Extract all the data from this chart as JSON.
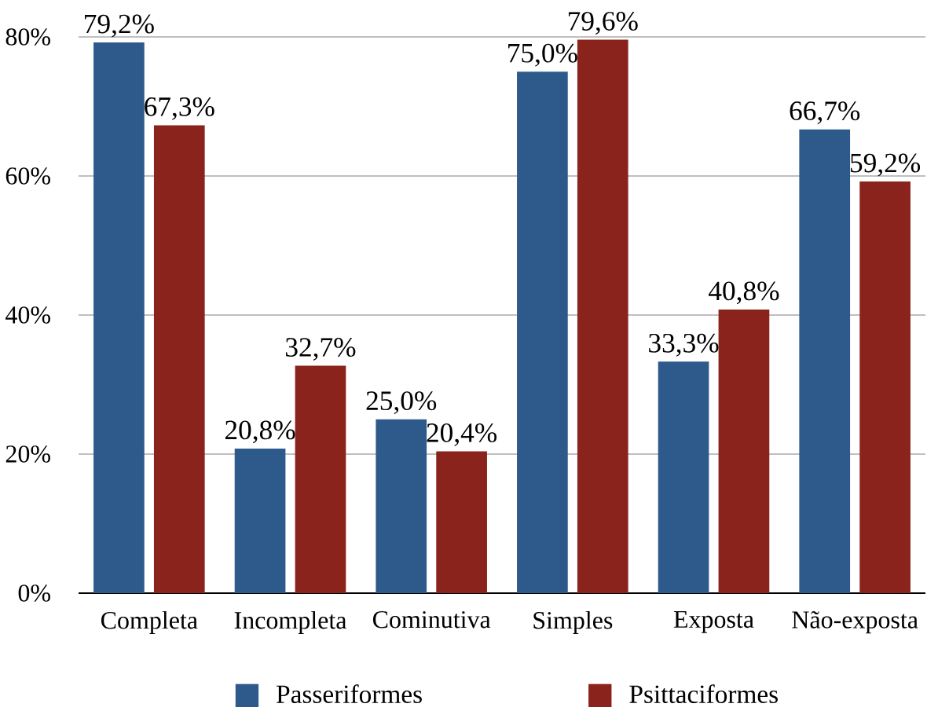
{
  "chart_data": {
    "type": "bar",
    "categories": [
      "Completa",
      "Incompleta",
      "Cominutiva",
      "Simples",
      "Exposta",
      "Não-exposta"
    ],
    "series": [
      {
        "name": "Passeriformes",
        "color": "#2e5a8b",
        "values": [
          79.2,
          20.8,
          25.0,
          75.0,
          33.3,
          66.7
        ],
        "value_labels": [
          "79,2%",
          "20,8%",
          "25,0%",
          "75,0%",
          "33,3%",
          "66,7%"
        ]
      },
      {
        "name": "Psittaciformes",
        "color": "#8a231c",
        "values": [
          67.3,
          32.7,
          20.4,
          79.6,
          40.8,
          59.2
        ],
        "value_labels": [
          "67,3%",
          "32,7%",
          "20,4%",
          "79,6%",
          "40,8%",
          "59,2%"
        ]
      }
    ],
    "ylim": [
      0,
      80
    ],
    "yticks": [
      {
        "value": 0,
        "label": "0%"
      },
      {
        "value": 20,
        "label": "20%"
      },
      {
        "value": 40,
        "label": "40%"
      },
      {
        "value": 60,
        "label": "60%"
      },
      {
        "value": 80,
        "label": "80%"
      }
    ],
    "grid": "y",
    "legend": "bottom"
  }
}
